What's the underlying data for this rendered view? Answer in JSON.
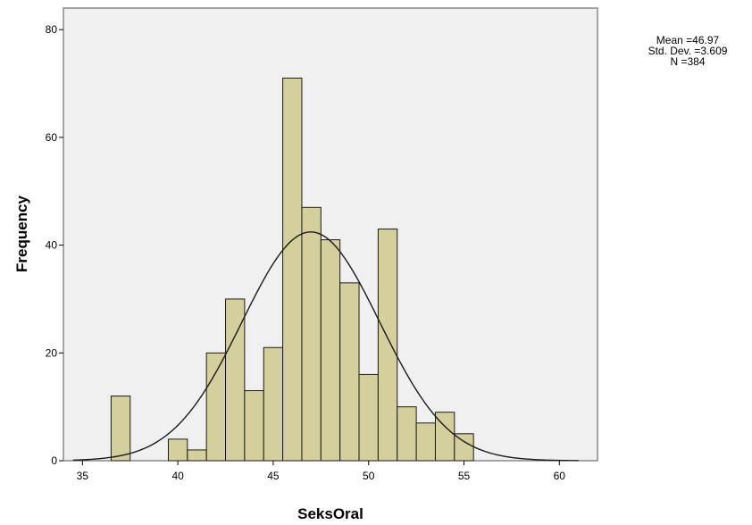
{
  "chart_data": {
    "type": "bar",
    "subtype": "histogram",
    "xlabel": "SeksOral",
    "ylabel": "Frequency",
    "xlim": [
      34,
      62
    ],
    "ylim": [
      0,
      84
    ],
    "xticks": [
      35,
      40,
      45,
      50,
      55,
      60
    ],
    "yticks": [
      0,
      20,
      40,
      60,
      80
    ],
    "bin_width": 1,
    "bins": [
      {
        "center": 37,
        "count": 12
      },
      {
        "center": 40,
        "count": 4
      },
      {
        "center": 41,
        "count": 2
      },
      {
        "center": 42,
        "count": 20
      },
      {
        "center": 43,
        "count": 30
      },
      {
        "center": 44,
        "count": 13
      },
      {
        "center": 45,
        "count": 21
      },
      {
        "center": 46,
        "count": 71
      },
      {
        "center": 47,
        "count": 47
      },
      {
        "center": 48,
        "count": 41
      },
      {
        "center": 49,
        "count": 33
      },
      {
        "center": 50,
        "count": 16
      },
      {
        "center": 51,
        "count": 43
      },
      {
        "center": 52,
        "count": 10
      },
      {
        "center": 53,
        "count": 7
      },
      {
        "center": 54,
        "count": 9
      },
      {
        "center": 55,
        "count": 5
      }
    ],
    "normal_curve": {
      "mean": 46.97,
      "sd": 3.609,
      "n": 384
    },
    "grid": false,
    "colors": {
      "bar_fill": "#d5cf9d",
      "bar_stroke": "#1a1a1a",
      "plot_bg": "#f0f0f0",
      "curve": "#1a1a1a"
    }
  },
  "stats": {
    "mean_label": "Mean =46.97",
    "sd_label": "Std. Dev. =3.609",
    "n_label": "N =384"
  }
}
